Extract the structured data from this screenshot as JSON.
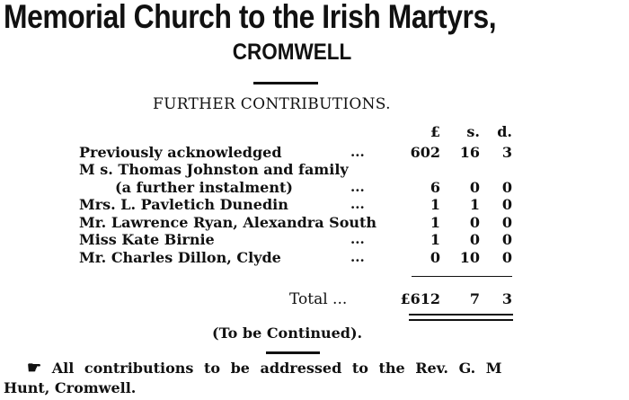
{
  "title": "Memorial Church to the Irish Martyrs,",
  "subtitle": "CROMWELL",
  "heading": "FURTHER CONTRIBUTIONS.",
  "columns": {
    "pounds": "£",
    "shillings": "s.",
    "pence": "d."
  },
  "leader": "...",
  "rows": [
    {
      "name": "Previously acknowledged",
      "dots": "...",
      "l": "602",
      "s": "16",
      "d": "3"
    },
    {
      "name": "M s. Thomas Johnston and family",
      "dots": "",
      "l": "",
      "s": "",
      "d": ""
    },
    {
      "name": "(a further instalment)",
      "dots": "...",
      "l": "6",
      "s": "0",
      "d": "0"
    },
    {
      "name": "Mrs. L. Pavletich Dunedin",
      "dots": "...",
      "l": "1",
      "s": "1",
      "d": "0"
    },
    {
      "name": "Mr. Lawrence Ryan, Alexandra South",
      "dots": "",
      "l": "1",
      "s": "0",
      "d": "0"
    },
    {
      "name": "Miss Kate Birnie",
      "dots": "...",
      "l": "1",
      "s": "0",
      "d": "0"
    },
    {
      "name": "Mr. Charles Dillon, Clyde",
      "dots": "...",
      "l": "0",
      "s": "10",
      "d": "0"
    }
  ],
  "total": {
    "label": "Total ...",
    "l": "£612",
    "s": "7",
    "d": "3"
  },
  "continued": "(To be Continued).",
  "footer": {
    "icon": "pointing-hand-icon",
    "line1": "All contributions to be addressed to the Rev. G. M",
    "line2": "Hunt, Cromwell."
  }
}
